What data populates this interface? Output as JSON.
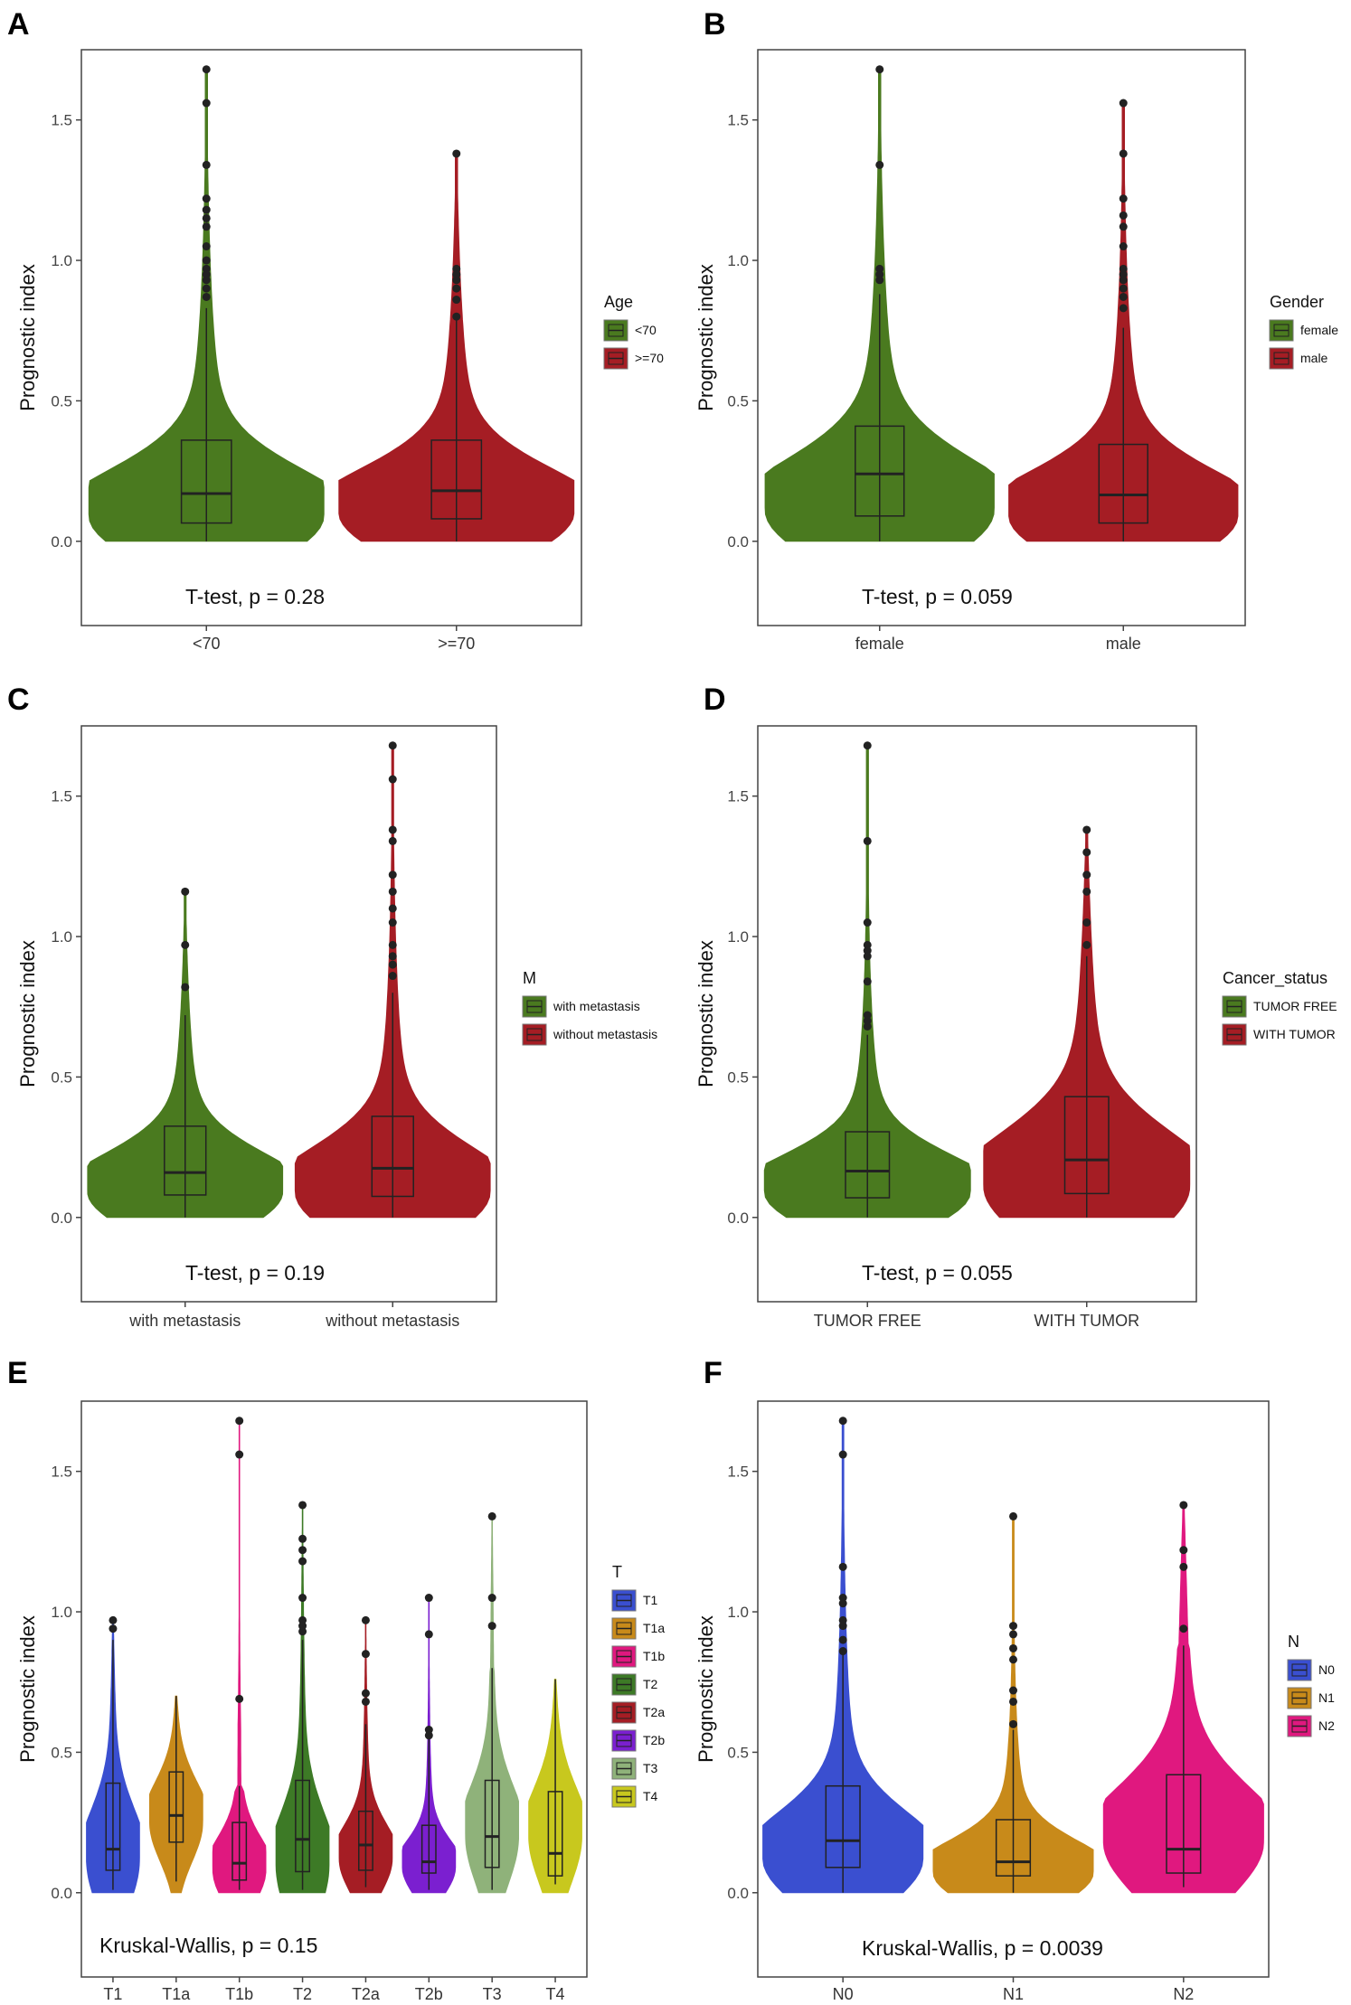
{
  "chart_data": [
    {
      "panel": "A",
      "type": "violin",
      "ylabel": "Prognostic index",
      "ylim": [
        -0.3,
        1.75
      ],
      "yticks": [
        0.0,
        0.5,
        1.0,
        1.5
      ],
      "ytick_labels": [
        "0.0",
        "0.5",
        "1.0",
        "1.5"
      ],
      "annotation": "T-test, p = 0.28",
      "legend_title": "Age",
      "groups": [
        {
          "name": "<70",
          "color": "#4a7a1f",
          "box": [
            0.065,
            0.17,
            0.36
          ],
          "whisker": [
            0.0,
            0.83
          ],
          "max": 1.68,
          "mode": 0.09,
          "outliers": [
            1.68,
            1.56,
            1.34,
            1.22,
            1.18,
            1.15,
            1.12,
            1.05,
            1.0,
            0.97,
            0.95,
            0.93,
            0.9,
            0.87
          ]
        },
        {
          "name": ">=70",
          "color": "#a51d24",
          "box": [
            0.08,
            0.18,
            0.36
          ],
          "whisker": [
            0.0,
            0.8
          ],
          "max": 1.38,
          "mode": 0.1,
          "outliers": [
            1.38,
            0.97,
            0.95,
            0.93,
            0.9,
            0.86,
            0.8
          ]
        }
      ]
    },
    {
      "panel": "B",
      "type": "violin",
      "ylabel": "Prognostic index",
      "ylim": [
        -0.3,
        1.75
      ],
      "yticks": [
        0.0,
        0.5,
        1.0,
        1.5
      ],
      "ytick_labels": [
        "0.0",
        "0.5",
        "1.0",
        "1.5"
      ],
      "annotation": "T-test, p = 0.059",
      "legend_title": "Gender",
      "groups": [
        {
          "name": "female",
          "color": "#4a7a1f",
          "box": [
            0.09,
            0.24,
            0.41
          ],
          "whisker": [
            0.0,
            0.88
          ],
          "max": 1.68,
          "mode": 0.11,
          "outliers": [
            1.68,
            1.34,
            0.97,
            0.95,
            0.93
          ]
        },
        {
          "name": "male",
          "color": "#a51d24",
          "box": [
            0.065,
            0.165,
            0.345
          ],
          "whisker": [
            0.0,
            0.76
          ],
          "max": 1.56,
          "mode": 0.09,
          "outliers": [
            1.56,
            1.38,
            1.22,
            1.16,
            1.12,
            1.05,
            0.97,
            0.95,
            0.93,
            0.9,
            0.87,
            0.83
          ]
        }
      ]
    },
    {
      "panel": "C",
      "type": "violin",
      "ylabel": "Prognostic index",
      "ylim": [
        -0.3,
        1.75
      ],
      "yticks": [
        0.0,
        0.5,
        1.0,
        1.5
      ],
      "ytick_labels": [
        "0.0",
        "0.5",
        "1.0",
        "1.5"
      ],
      "annotation": "T-test, p = 0.19",
      "legend_title": "M",
      "groups": [
        {
          "name": "with metastasis",
          "color": "#4a7a1f",
          "box": [
            0.08,
            0.16,
            0.325
          ],
          "whisker": [
            0.0,
            0.72
          ],
          "max": 1.16,
          "mode": 0.09,
          "outliers": [
            1.16,
            0.97,
            0.82
          ]
        },
        {
          "name": "without metastasis",
          "color": "#a51d24",
          "box": [
            0.075,
            0.175,
            0.36
          ],
          "whisker": [
            0.0,
            0.8
          ],
          "max": 1.68,
          "mode": 0.09,
          "outliers": [
            1.68,
            1.56,
            1.38,
            1.34,
            1.22,
            1.16,
            1.1,
            1.05,
            0.97,
            0.93,
            0.9,
            0.86
          ]
        }
      ]
    },
    {
      "panel": "D",
      "type": "violin",
      "ylabel": "Prognostic index",
      "ylim": [
        -0.3,
        1.75
      ],
      "yticks": [
        0.0,
        0.5,
        1.0,
        1.5
      ],
      "ytick_labels": [
        "0.0",
        "0.5",
        "1.0",
        "1.5"
      ],
      "annotation": "T-test, p = 0.055",
      "legend_title": "Cancer_status",
      "groups": [
        {
          "name": "TUMOR FREE",
          "color": "#4a7a1f",
          "box": [
            0.07,
            0.165,
            0.305
          ],
          "whisker": [
            0.0,
            0.65
          ],
          "max": 1.68,
          "mode": 0.09,
          "outliers": [
            1.68,
            1.34,
            1.05,
            0.97,
            0.95,
            0.93,
            0.84,
            0.72,
            0.7,
            0.68
          ]
        },
        {
          "name": "WITH TUMOR",
          "color": "#a51d24",
          "box": [
            0.085,
            0.205,
            0.43
          ],
          "whisker": [
            0.0,
            0.93
          ],
          "max": 1.38,
          "mode": 0.11,
          "outliers": [
            1.38,
            1.3,
            1.22,
            1.16,
            1.05,
            0.97
          ]
        }
      ]
    },
    {
      "panel": "E",
      "type": "violin",
      "ylabel": "Prognostic index",
      "ylim": [
        -0.3,
        1.75
      ],
      "yticks": [
        0.0,
        0.5,
        1.0,
        1.5
      ],
      "ytick_labels": [
        "0.0",
        "0.5",
        "1.0",
        "1.5"
      ],
      "annotation": "Kruskal-Wallis, p = 0.15",
      "legend_title": "T",
      "groups": [
        {
          "name": "T1",
          "color": "#3a4fd0",
          "box": [
            0.08,
            0.155,
            0.39
          ],
          "whisker": [
            0.01,
            0.9
          ],
          "max": 0.97,
          "mode": 0.12,
          "outliers": [
            0.97,
            0.94
          ]
        },
        {
          "name": "T1a",
          "color": "#c88a1a",
          "box": [
            0.18,
            0.275,
            0.43
          ],
          "whisker": [
            0.04,
            0.7
          ],
          "max": 0.7,
          "mode": 0.25,
          "outliers": []
        },
        {
          "name": "T1b",
          "color": "#e0187f",
          "box": [
            0.045,
            0.105,
            0.25
          ],
          "whisker": [
            0.01,
            0.38
          ],
          "max": 1.68,
          "mode": 0.08,
          "outliers": [
            1.68,
            1.56,
            0.69
          ]
        },
        {
          "name": "T2",
          "color": "#3d7a26",
          "box": [
            0.075,
            0.19,
            0.4
          ],
          "whisker": [
            0.01,
            0.9
          ],
          "max": 1.38,
          "mode": 0.1,
          "outliers": [
            1.38,
            1.26,
            1.22,
            1.18,
            1.05,
            0.97,
            0.95,
            0.93
          ]
        },
        {
          "name": "T2a",
          "color": "#a51d24",
          "box": [
            0.08,
            0.17,
            0.29
          ],
          "whisker": [
            0.02,
            0.6
          ],
          "max": 0.97,
          "mode": 0.12,
          "outliers": [
            0.97,
            0.85,
            0.71,
            0.68
          ]
        },
        {
          "name": "T2b",
          "color": "#7b1fd0",
          "box": [
            0.07,
            0.11,
            0.24
          ],
          "whisker": [
            0.01,
            0.55
          ],
          "max": 1.05,
          "mode": 0.09,
          "outliers": [
            1.05,
            0.92,
            0.58,
            0.56
          ]
        },
        {
          "name": "T3",
          "color": "#8fb27a",
          "box": [
            0.09,
            0.2,
            0.4
          ],
          "whisker": [
            0.01,
            0.8
          ],
          "max": 1.34,
          "mode": 0.2,
          "outliers": [
            1.34,
            1.05,
            0.95
          ]
        },
        {
          "name": "T4",
          "color": "#c8c81e",
          "box": [
            0.06,
            0.14,
            0.36
          ],
          "whisker": [
            0.03,
            0.76
          ],
          "max": 0.76,
          "mode": 0.2,
          "outliers": []
        }
      ]
    },
    {
      "panel": "F",
      "type": "violin",
      "ylabel": "Prognostic index",
      "ylim": [
        -0.3,
        1.75
      ],
      "yticks": [
        0.0,
        0.5,
        1.0,
        1.5
      ],
      "ytick_labels": [
        "0.0",
        "0.5",
        "1.0",
        "1.5"
      ],
      "annotation": "Kruskal-Wallis, p = 0.0039",
      "legend_title": "N",
      "groups": [
        {
          "name": "N0",
          "color": "#3a4fd0",
          "box": [
            0.09,
            0.185,
            0.38
          ],
          "whisker": [
            0.0,
            0.85
          ],
          "max": 1.68,
          "mode": 0.12,
          "outliers": [
            1.68,
            1.56,
            1.16,
            1.05,
            1.03,
            0.97,
            0.95,
            0.9,
            0.86
          ]
        },
        {
          "name": "N1",
          "color": "#c88a1a",
          "box": [
            0.06,
            0.11,
            0.26
          ],
          "whisker": [
            0.0,
            0.58
          ],
          "max": 1.34,
          "mode": 0.07,
          "outliers": [
            1.34,
            0.95,
            0.92,
            0.87,
            0.83,
            0.72,
            0.68,
            0.6
          ]
        },
        {
          "name": "N2",
          "color": "#e0187f",
          "box": [
            0.07,
            0.155,
            0.42
          ],
          "whisker": [
            0.02,
            0.88
          ],
          "max": 1.38,
          "mode": 0.18,
          "outliers": [
            1.38,
            1.22,
            1.16,
            0.94
          ]
        }
      ]
    }
  ]
}
